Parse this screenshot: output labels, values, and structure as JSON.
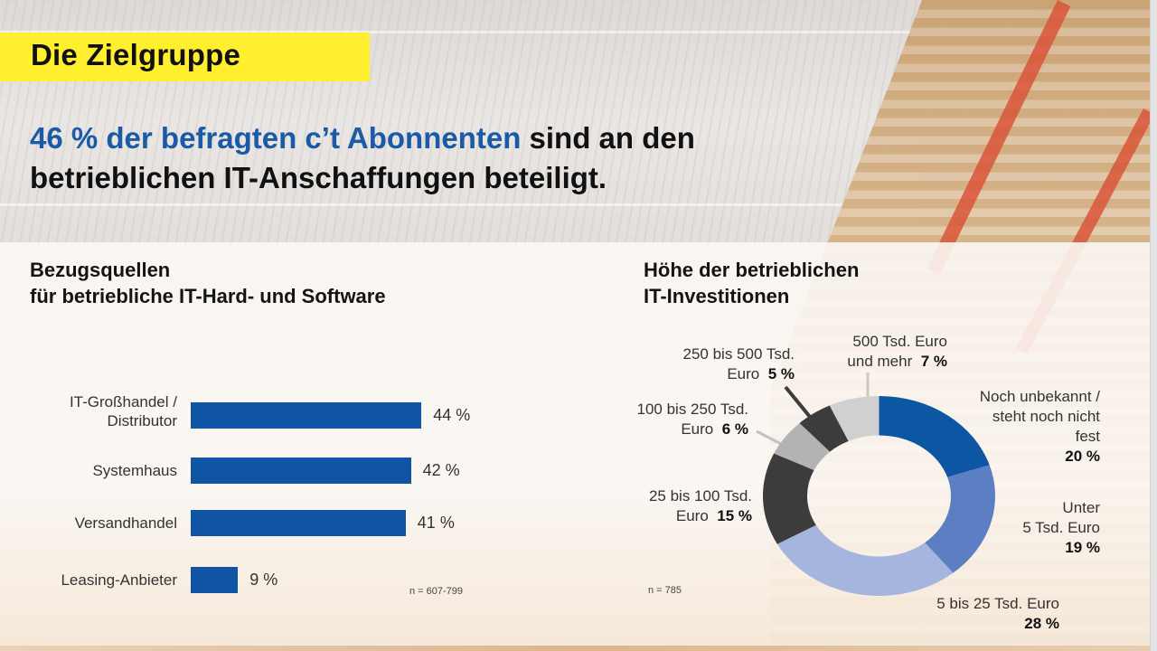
{
  "header": {
    "title": "Die Zielgruppe",
    "headline_highlight": "46 % der befragten c’t Abonnenten",
    "headline_rest_line1": " sind an den",
    "headline_line2": "betrieblichen IT-Anschaffungen beteiligt."
  },
  "colors": {
    "title_bar": "#ffef2e",
    "highlight": "#1a5aa6",
    "bar": "#0f55a3"
  },
  "chart_data": [
    {
      "type": "bar",
      "orientation": "horizontal",
      "title": "Bezugsquellen für betriebliche IT-Hard- und Software",
      "title_line1": "Bezugsquellen",
      "title_line2": "für betriebliche IT-Hard- und Software",
      "categories": [
        "IT-Großhandel / Distributor",
        "Systemhaus",
        "Versandhandel",
        "Leasing-Anbieter"
      ],
      "category_lines": [
        [
          "IT-Großhandel /",
          "Distributor"
        ],
        [
          "Systemhaus"
        ],
        [
          "Versandhandel"
        ],
        [
          "Leasing-Anbieter"
        ]
      ],
      "values": [
        44,
        42,
        41,
        9
      ],
      "value_labels": [
        "44 %",
        "42 %",
        "41 %",
        "9 %"
      ],
      "unit": "%",
      "note": "n = 607-799",
      "color": "#0f55a3",
      "grid": false
    },
    {
      "type": "pie",
      "variant": "donut",
      "title": "Höhe der betrieblichen IT-Investitionen",
      "title_line1": "Höhe der betrieblichen",
      "title_line2": "IT-Investitionen",
      "start": "12 o'clock",
      "direction": "clockwise",
      "slices": [
        {
          "label": "Noch unbekannt / steht noch nicht fest",
          "lines": [
            "Noch unbekannt /",
            "steht noch nicht",
            "fest"
          ],
          "value": 20,
          "value_label": "20 %",
          "color": "#0d56a4"
        },
        {
          "label": "Unter 5 Tsd. Euro",
          "lines": [
            "Unter",
            "5 Tsd. Euro"
          ],
          "value": 19,
          "value_label": "19 %",
          "color": "#5b7fc2"
        },
        {
          "label": "5 bis 25 Tsd. Euro",
          "lines": [
            "5 bis 25 Tsd. Euro"
          ],
          "value": 28,
          "value_label": "28 %",
          "color": "#a5b5de"
        },
        {
          "label": "25 bis 100 Tsd. Euro",
          "lines": [
            "25 bis 100 Tsd.",
            "Euro"
          ],
          "value": 15,
          "value_label": "15 %",
          "color": "#3c3c3c"
        },
        {
          "label": "100 bis 250 Tsd. Euro",
          "lines": [
            "100 bis 250 Tsd.",
            "Euro"
          ],
          "value": 6,
          "value_label": "6 %",
          "color": "#b3b3b3"
        },
        {
          "label": "250 bis 500 Tsd. Euro",
          "lines": [
            "250 bis 500 Tsd.",
            "Euro"
          ],
          "value": 5,
          "value_label": "5 %",
          "color": "#3c3c3c"
        },
        {
          "label": "500 Tsd. Euro und mehr",
          "lines": [
            "500 Tsd. Euro",
            "und mehr"
          ],
          "value": 7,
          "value_label": "7 %",
          "color": "#d0d0d0"
        }
      ],
      "note": "n = 785"
    }
  ]
}
